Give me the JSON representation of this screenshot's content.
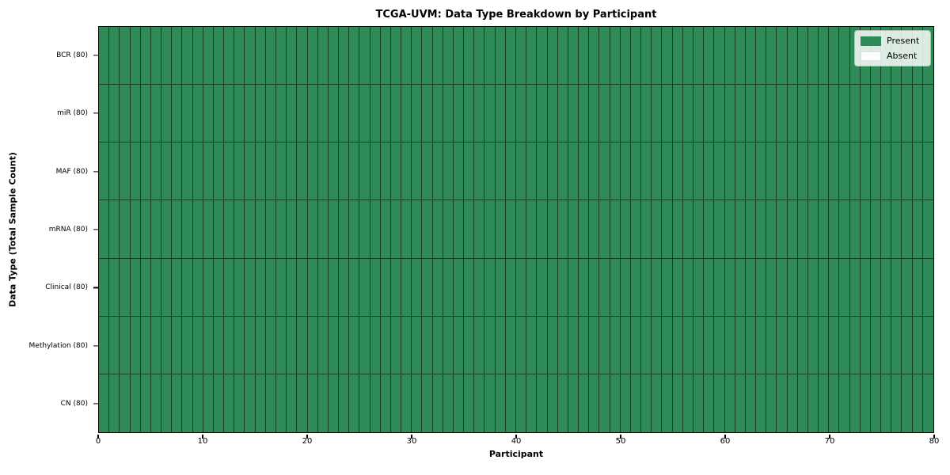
{
  "chart_data": {
    "type": "heatmap",
    "title": "TCGA-UVM: Data Type Breakdown by Participant",
    "xlabel": "Participant",
    "ylabel": "Data Type (Total Sample Count)",
    "xlim": [
      0,
      80
    ],
    "x_ticks": [
      0,
      10,
      20,
      30,
      40,
      50,
      60,
      70,
      80
    ],
    "n_participants": 80,
    "grid": "cell-borders-on",
    "legend_position": "upper-right",
    "colors": {
      "present": "#2e8b57",
      "absent": "#ffffff",
      "cell_border": "rgba(0,0,0,0.55)",
      "frame": "#000000"
    },
    "rows": [
      {
        "label": "BCR (80)",
        "data_type": "BCR",
        "total_samples": 80,
        "present_count": 80
      },
      {
        "label": "miR (80)",
        "data_type": "miR",
        "total_samples": 80,
        "present_count": 80
      },
      {
        "label": "MAF (80)",
        "data_type": "MAF",
        "total_samples": 80,
        "present_count": 80
      },
      {
        "label": "mRNA (80)",
        "data_type": "mRNA",
        "total_samples": 80,
        "present_count": 80
      },
      {
        "label": "Clinical (80)",
        "data_type": "Clinical",
        "total_samples": 80,
        "present_count": 80
      },
      {
        "label": "Methylation (80)",
        "data_type": "Methylation",
        "total_samples": 80,
        "present_count": 80
      },
      {
        "label": "CN (80)",
        "data_type": "CN",
        "total_samples": 80,
        "present_count": 80
      }
    ],
    "legend": [
      {
        "label": "Present",
        "color": "#2e8b57"
      },
      {
        "label": "Absent",
        "color": "#ffffff"
      }
    ]
  }
}
